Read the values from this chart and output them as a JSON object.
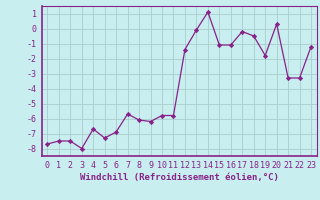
{
  "x": [
    0,
    1,
    2,
    3,
    4,
    5,
    6,
    7,
    8,
    9,
    10,
    11,
    12,
    13,
    14,
    15,
    16,
    17,
    18,
    19,
    20,
    21,
    22,
    23
  ],
  "y": [
    -7.7,
    -7.5,
    -7.5,
    -8.0,
    -6.7,
    -7.3,
    -6.9,
    -5.7,
    -6.1,
    -6.2,
    -5.8,
    -5.8,
    -1.4,
    -0.1,
    1.1,
    -1.1,
    -1.1,
    -0.2,
    -0.5,
    -1.8,
    0.3,
    -3.3,
    -3.3,
    -1.2
  ],
  "line_color": "#882288",
  "marker": "D",
  "marker_size": 2.2,
  "bg_color": "#c8eef0",
  "grid_color": "#aacccc",
  "xlabel": "Windchill (Refroidissement éolien,°C)",
  "ylim": [
    -8.5,
    1.5
  ],
  "xlim": [
    -0.5,
    23.5
  ],
  "yticks": [
    1,
    0,
    -1,
    -2,
    -3,
    -4,
    -5,
    -6,
    -7,
    -8
  ],
  "xticks": [
    0,
    1,
    2,
    3,
    4,
    5,
    6,
    7,
    8,
    9,
    10,
    11,
    12,
    13,
    14,
    15,
    16,
    17,
    18,
    19,
    20,
    21,
    22,
    23
  ],
  "axis_color": "#882288",
  "label_fontsize": 6.5,
  "tick_fontsize": 6.0
}
